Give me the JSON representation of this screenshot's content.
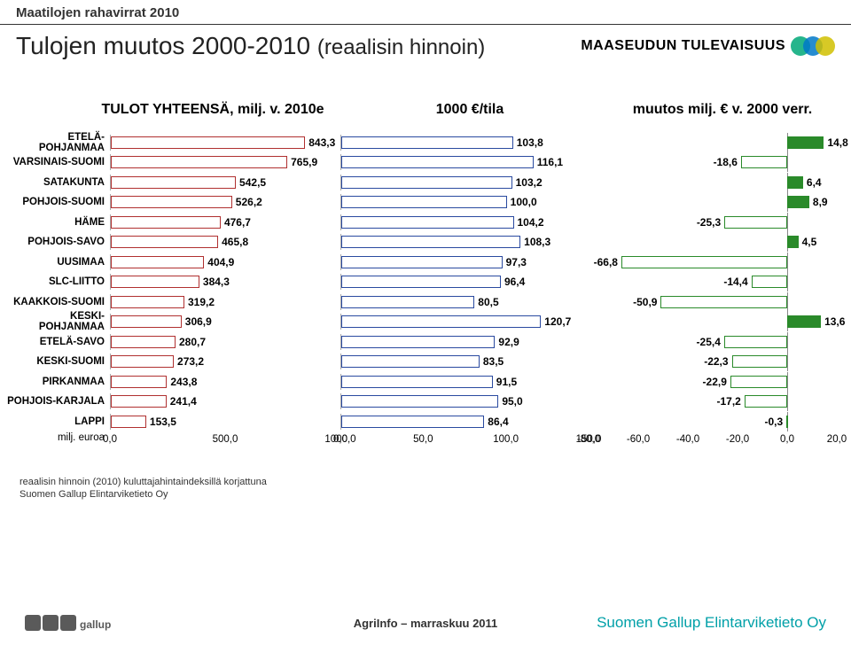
{
  "header": {
    "supertitle": "Maatilojen rahavirrat 2010",
    "title_main": "Tulojen muutos 2000-2010",
    "title_paren": "(reaalisin hinnoin)",
    "brand_text": "MAASEUDUN TULEVAISUUS"
  },
  "chart": {
    "col1_title": "TULOT YHTEENSÄ, milj. v. 2010e",
    "col2_title": "1000 €/tila",
    "col3_title": "muutos milj. € v. 2000 verr.",
    "categories": [
      "ETELÄ-POHJANMAA",
      "VARSINAIS-SUOMI",
      "SATAKUNTA",
      "POHJOIS-SUOMI",
      "HÄME",
      "POHJOIS-SAVO",
      "UUSIMAA",
      "SLC-LIITTO",
      "KAAKKOIS-SUOMI",
      "KESKI-POHJANMAA",
      "ETELÄ-SAVO",
      "KESKI-SUOMI",
      "PIRKANMAA",
      "POHJOIS-KARJALA",
      "LAPPI"
    ],
    "col1": {
      "values": [
        843.3,
        765.9,
        542.5,
        526.2,
        476.7,
        465.8,
        404.9,
        384.3,
        319.2,
        306.9,
        280.7,
        273.2,
        243.8,
        241.4,
        153.5
      ],
      "xmin": 0.0,
      "xmax": 1000.0,
      "ticks": [
        0.0,
        500.0,
        1000.0
      ],
      "tick_labels": [
        "0,0",
        "500,0",
        "1000,0"
      ],
      "bar_fill": "#ffffff",
      "bar_border": "#b03030",
      "axis_label": "milj. euroa"
    },
    "col2": {
      "values": [
        103.8,
        116.1,
        103.2,
        100.0,
        104.2,
        108.3,
        97.3,
        96.4,
        80.5,
        120.7,
        92.9,
        83.5,
        91.5,
        95.0,
        86.4
      ],
      "xmin": 0.0,
      "xmax": 150.0,
      "ticks": [
        0.0,
        50.0,
        100.0,
        150.0
      ],
      "tick_labels": [
        "0,0",
        "50,0",
        "100,0",
        "150,0"
      ],
      "bar_fill": "#ffffff",
      "bar_border": "#2a4aa0"
    },
    "col3": {
      "values": [
        14.8,
        -18.6,
        6.4,
        8.9,
        -25.3,
        4.5,
        -66.8,
        -14.4,
        -50.9,
        13.6,
        -25.4,
        -22.3,
        -22.9,
        -17.2,
        -0.3
      ],
      "xmin": -80.0,
      "xmax": 20.0,
      "ticks": [
        -80.0,
        -60.0,
        -40.0,
        -20.0,
        0.0,
        20.0
      ],
      "tick_labels": [
        "-80,0",
        "-60,0",
        "-40,0",
        "-20,0",
        "0,0",
        "20,0"
      ],
      "bar_fill_pos": "#2a8a2a",
      "bar_fill_neg": "#ffffff",
      "bar_border": "#2a8a2a"
    },
    "value_labels": {
      "col1": [
        "843,3",
        "765,9",
        "542,5",
        "526,2",
        "476,7",
        "465,8",
        "404,9",
        "384,3",
        "319,2",
        "306,9",
        "280,7",
        "273,2",
        "243,8",
        "241,4",
        "153,5"
      ],
      "col2": [
        "103,8",
        "116,1",
        "103,2",
        "100,0",
        "104,2",
        "108,3",
        "97,3",
        "96,4",
        "80,5",
        "120,7",
        "92,9",
        "83,5",
        "91,5",
        "95,0",
        "86,4"
      ],
      "col3": [
        "14,8",
        "-18,6",
        "6,4",
        "8,9",
        "-25,3",
        "4,5",
        "-66,8",
        "-14,4",
        "-50,9",
        "13,6",
        "-25,4",
        "-22,3",
        "-22,9",
        "-17,2",
        "-0,3"
      ]
    },
    "label_fontsize": 12,
    "grid_color": "#cccccc"
  },
  "footnotes": {
    "line1": "reaalisin hinnoin (2010) kuluttajahintaindeksillä korjattuna",
    "line2": "Suomen Gallup Elintarviketieto Oy"
  },
  "footer": {
    "center": "AgriInfo – marraskuu 2011",
    "right": "Suomen Gallup Elintarviketieto Oy",
    "tns_label": "gallup"
  },
  "corner_colors": [
    "#00a878",
    "#0078c8",
    "#d0c000"
  ]
}
